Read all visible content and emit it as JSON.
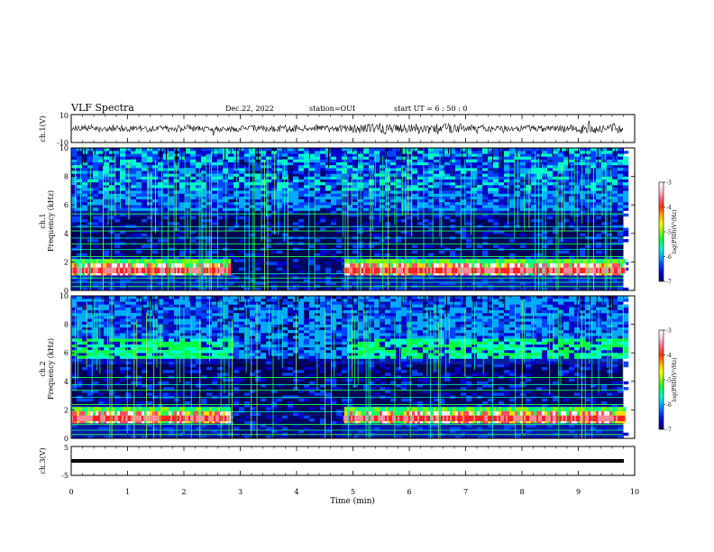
{
  "header": {
    "title": "VLF Spectra",
    "date": "Dec.22, 2022",
    "station": "station=OUI",
    "start_ut": "start UT = 6 : 50 : 0"
  },
  "colorbar": {
    "label": "log(PSD)(V²/Hz)",
    "ticks": [
      "-3",
      "-4",
      "-5",
      "-6",
      "-7"
    ],
    "colormap": [
      "#000066",
      "#0000cc",
      "#0044ff",
      "#00aaff",
      "#00ffcc",
      "#00ff44",
      "#88ff00",
      "#ffff00",
      "#ffaa00",
      "#ff3300",
      "#ff6680",
      "#ffccdd",
      "#ffffff"
    ]
  },
  "chart_data": [
    {
      "type": "line",
      "panel": "waveform-ch1",
      "ylabel": "ch.1(V)",
      "ylim": [
        -10,
        10
      ],
      "yticks": [
        "10",
        "-10"
      ],
      "description_values": {
        "mean": 0,
        "typical_amplitude": 2
      }
    },
    {
      "type": "heatmap",
      "panel": "spectrogram-ch1",
      "ylabel_line1": "ch.1",
      "ylabel_line2": "Frequency (kHz)",
      "ylim": [
        0,
        10
      ],
      "yticks": [
        "0",
        "2",
        "4",
        "6",
        "8",
        "10"
      ],
      "zlim": [
        -7,
        -3
      ],
      "gap_minutes": [
        2.8,
        4.8
      ]
    },
    {
      "type": "heatmap",
      "panel": "spectrogram-ch2",
      "ylabel_line1": "ch.2",
      "ylabel_line2": "Frequency (kHz)",
      "ylim": [
        0,
        10
      ],
      "yticks": [
        "0",
        "2",
        "4",
        "6",
        "8",
        "10"
      ],
      "zlim": [
        -7,
        -3
      ],
      "gap_minutes": [
        2.8,
        4.8
      ]
    },
    {
      "type": "line",
      "panel": "waveform-ch3",
      "ylabel": "ch.3(V)",
      "ylim": [
        -5,
        5
      ],
      "yticks": [
        "5",
        "-5"
      ],
      "description_values": {
        "mean": 0
      }
    }
  ],
  "xaxis": {
    "label": "Time (min)",
    "range": [
      0,
      10
    ],
    "ticks": [
      "0",
      "1",
      "2",
      "3",
      "4",
      "5",
      "6",
      "7",
      "8",
      "9",
      "10"
    ],
    "data_end": 9.8
  }
}
